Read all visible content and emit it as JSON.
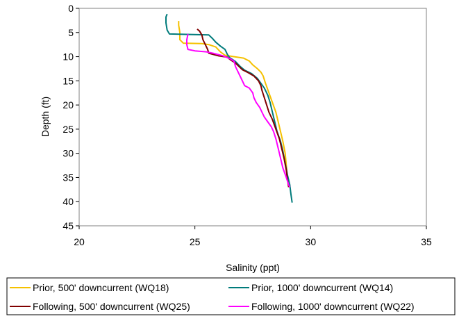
{
  "chart_data": {
    "type": "line",
    "title": "",
    "xlabel": "Salinity (ppt)",
    "ylabel": "Depth (ft)",
    "xlim": [
      20,
      35
    ],
    "ylim": [
      0,
      45
    ],
    "y_reversed": true,
    "x_ticks": [
      "20",
      "25",
      "30",
      "35"
    ],
    "y_ticks": [
      "0",
      "5",
      "10",
      "15",
      "20",
      "25",
      "30",
      "35",
      "40",
      "45"
    ],
    "grid": false,
    "legend_position": "bottom",
    "series": [
      {
        "name": "Prior, 500' downcurrent (WQ18)",
        "color": "#F5C100",
        "points": [
          [
            24.3,
            2.6
          ],
          [
            24.3,
            3.5
          ],
          [
            24.35,
            5.0
          ],
          [
            24.35,
            6.5
          ],
          [
            24.5,
            7.2
          ],
          [
            25.3,
            7.3
          ],
          [
            25.6,
            7.5
          ],
          [
            25.9,
            8.0
          ],
          [
            26.1,
            9.0
          ],
          [
            26.3,
            9.7
          ],
          [
            26.7,
            10.0
          ],
          [
            27.1,
            10.3
          ],
          [
            27.35,
            10.9
          ],
          [
            27.5,
            11.7
          ],
          [
            27.7,
            12.5
          ],
          [
            27.85,
            13.2
          ],
          [
            27.95,
            14.0
          ],
          [
            28.05,
            15.5
          ],
          [
            28.2,
            17.5
          ],
          [
            28.35,
            19.5
          ],
          [
            28.5,
            21.5
          ],
          [
            28.6,
            23.5
          ],
          [
            28.7,
            25.5
          ],
          [
            28.8,
            27.5
          ],
          [
            28.9,
            30.0
          ],
          [
            28.95,
            32.5
          ],
          [
            29.0,
            35.0
          ],
          [
            29.05,
            37.0
          ]
        ]
      },
      {
        "name": "Prior, 1000' downcurrent (WQ14)",
        "color": "#007B7B",
        "points": [
          [
            23.8,
            1.2
          ],
          [
            23.75,
            1.8
          ],
          [
            23.75,
            3.0
          ],
          [
            23.8,
            4.5
          ],
          [
            23.9,
            5.3
          ],
          [
            24.8,
            5.4
          ],
          [
            25.6,
            5.5
          ],
          [
            25.75,
            6.2
          ],
          [
            25.9,
            7.0
          ],
          [
            26.1,
            7.8
          ],
          [
            26.3,
            8.5
          ],
          [
            26.35,
            9.0
          ],
          [
            26.4,
            9.5
          ],
          [
            26.5,
            10.2
          ],
          [
            26.75,
            11.0
          ],
          [
            26.95,
            12.0
          ],
          [
            27.15,
            12.8
          ],
          [
            27.45,
            13.5
          ],
          [
            27.7,
            14.5
          ],
          [
            27.85,
            15.5
          ],
          [
            28.0,
            16.5
          ],
          [
            28.15,
            18.0
          ],
          [
            28.25,
            19.5
          ],
          [
            28.35,
            21.5
          ],
          [
            28.45,
            23.5
          ],
          [
            28.55,
            25.5
          ],
          [
            28.7,
            27.5
          ],
          [
            28.8,
            29.5
          ],
          [
            28.9,
            32.0
          ],
          [
            29.0,
            34.5
          ],
          [
            29.1,
            36.5
          ],
          [
            29.15,
            38.5
          ],
          [
            29.2,
            40.2
          ]
        ]
      },
      {
        "name": "Following, 500' downcurrent (WQ25)",
        "color": "#800000",
        "points": [
          [
            25.1,
            4.3
          ],
          [
            25.2,
            4.7
          ],
          [
            25.3,
            5.5
          ],
          [
            25.35,
            6.5
          ],
          [
            25.45,
            7.5
          ],
          [
            25.55,
            8.5
          ],
          [
            25.6,
            9.3
          ],
          [
            26.0,
            9.8
          ],
          [
            26.4,
            10.1
          ],
          [
            26.55,
            10.7
          ],
          [
            26.75,
            11.3
          ],
          [
            26.9,
            12.0
          ],
          [
            27.05,
            12.7
          ],
          [
            27.3,
            13.3
          ],
          [
            27.55,
            14.0
          ],
          [
            27.75,
            15.0
          ],
          [
            27.85,
            16.0
          ],
          [
            27.9,
            17.0
          ],
          [
            28.0,
            18.5
          ],
          [
            28.1,
            20.0
          ],
          [
            28.2,
            21.5
          ],
          [
            28.35,
            23.0
          ],
          [
            28.5,
            25.0
          ],
          [
            28.65,
            27.0
          ],
          [
            28.75,
            29.0
          ],
          [
            28.85,
            31.0
          ],
          [
            28.95,
            33.5
          ],
          [
            29.0,
            35.5
          ],
          [
            29.05,
            37.0
          ]
        ]
      },
      {
        "name": "Following, 1000' downcurrent (WQ22)",
        "color": "#FF00FF",
        "points": [
          [
            24.7,
            5.3
          ],
          [
            24.65,
            6.5
          ],
          [
            24.65,
            7.5
          ],
          [
            24.7,
            8.5
          ],
          [
            25.0,
            8.8
          ],
          [
            25.5,
            9.0
          ],
          [
            25.8,
            9.3
          ],
          [
            26.2,
            9.8
          ],
          [
            26.55,
            10.5
          ],
          [
            26.7,
            11.0
          ],
          [
            26.75,
            12.0
          ],
          [
            26.85,
            13.0
          ],
          [
            26.95,
            14.0
          ],
          [
            27.05,
            15.0
          ],
          [
            27.15,
            16.0
          ],
          [
            27.35,
            16.5
          ],
          [
            27.5,
            17.5
          ],
          [
            27.55,
            18.5
          ],
          [
            27.65,
            19.5
          ],
          [
            27.8,
            20.5
          ],
          [
            27.9,
            21.5
          ],
          [
            28.0,
            22.5
          ],
          [
            28.15,
            23.5
          ],
          [
            28.3,
            24.5
          ],
          [
            28.4,
            25.5
          ],
          [
            28.5,
            27.0
          ],
          [
            28.6,
            29.0
          ],
          [
            28.7,
            31.0
          ],
          [
            28.8,
            33.0
          ],
          [
            28.95,
            35.0
          ],
          [
            29.05,
            36.5
          ],
          [
            29.1,
            37.0
          ]
        ]
      }
    ]
  }
}
